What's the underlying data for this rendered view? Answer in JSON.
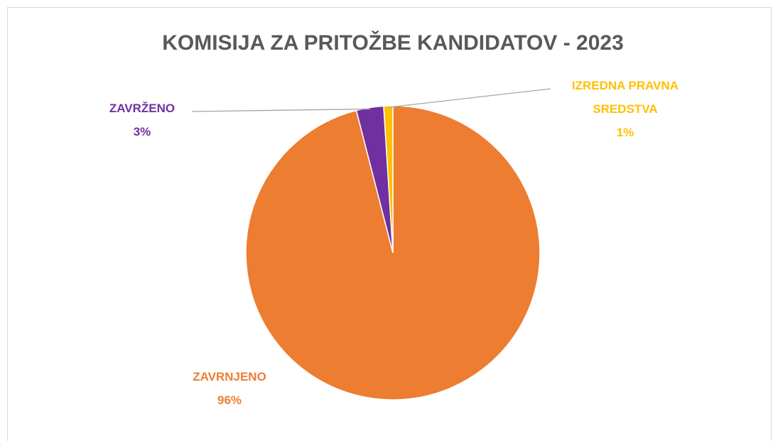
{
  "chart_data": {
    "type": "pie",
    "title": "KOMISIJA ZA PRITOŽBE KANDIDATOV - 2023",
    "categories": [
      "ZAVRNJENO",
      "ZAVRŽENO",
      "IZREDNA PRAVNA SREDSTVA"
    ],
    "values": [
      96,
      3,
      1
    ],
    "value_labels": [
      "96%",
      "3%",
      "1%"
    ],
    "colors": [
      "#ed7d31",
      "#7030a0",
      "#ffc000"
    ]
  }
}
